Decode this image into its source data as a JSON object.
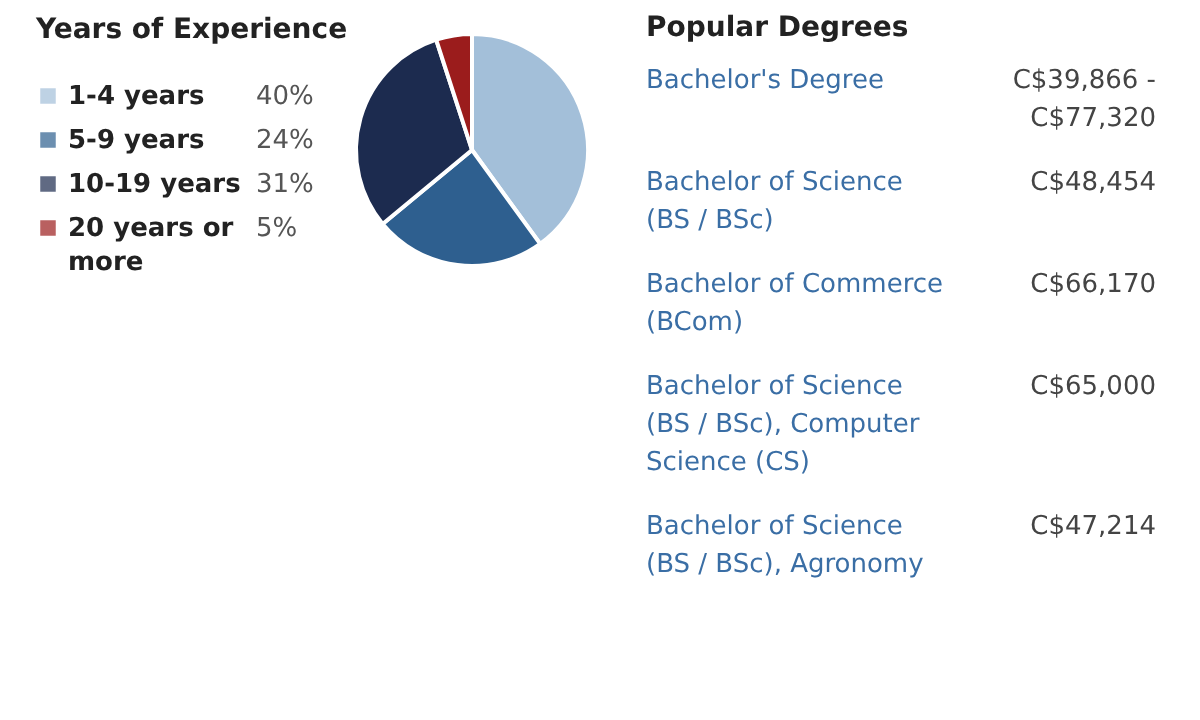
{
  "chart_data": [
    {
      "type": "pie",
      "title": "Years of Experience",
      "legend": "left",
      "categories": [
        "1-4 years",
        "5-9 years",
        "10-19 years",
        "20 years or more"
      ],
      "values": [
        40,
        24,
        31,
        5
      ],
      "value_labels": [
        "40%",
        "24%",
        "31%",
        "5%"
      ],
      "colors": [
        "#a3bfd9",
        "#2e5f8f",
        "#1c2b4f",
        "#9b1c1c"
      ]
    },
    {
      "type": "other",
      "title": "Popular Degrees",
      "categories": [
        "Bachelor's Degree",
        "Bachelor of Science (BS / BSc)",
        "Bachelor of Commerce (BCom)",
        "Bachelor of Science (BS / BSc), Computer Science (CS)",
        "Bachelor of Science (BS / BSc), Agronomy"
      ],
      "value_labels": [
        "C$39,866 - C$77,320",
        "C$48,454",
        "C$66,170",
        "C$65,000",
        "C$47,214"
      ]
    }
  ]
}
